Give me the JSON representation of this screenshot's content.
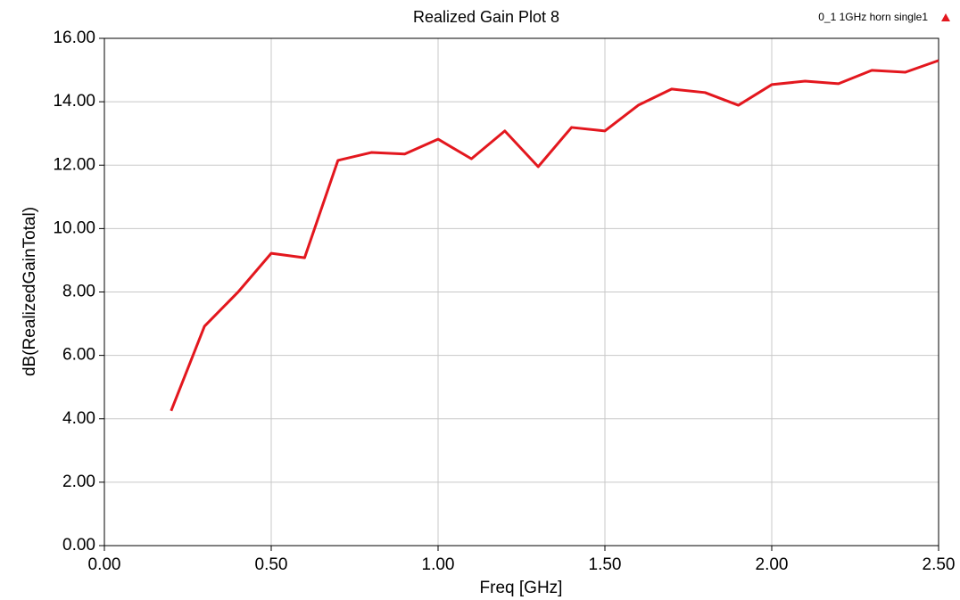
{
  "chart_data": {
    "type": "line",
    "title": "Realized Gain Plot 8",
    "xlabel": "Freq [GHz]",
    "ylabel": "dB(RealizedGainTotal)",
    "x": [
      0.2,
      0.3,
      0.4,
      0.5,
      0.6,
      0.7,
      0.8,
      0.9,
      1.0,
      1.1,
      1.2,
      1.3,
      1.4,
      1.5,
      1.6,
      1.7,
      1.8,
      1.9,
      2.0,
      2.1,
      2.2,
      2.3,
      2.4,
      2.5
    ],
    "series": [
      {
        "name": "0_1 1GHz horn single1",
        "color": "#e3171e",
        "values": [
          4.25,
          6.92,
          7.99,
          9.22,
          9.08,
          12.15,
          12.4,
          12.35,
          12.82,
          12.2,
          13.08,
          11.95,
          13.19,
          13.08,
          13.89,
          14.4,
          14.29,
          13.89,
          14.54,
          14.65,
          14.57,
          14.99,
          14.93,
          15.3
        ]
      }
    ],
    "xlim": [
      0,
      2.5
    ],
    "ylim": [
      0,
      16
    ],
    "xticks": [
      {
        "value": 0,
        "label": "0.00"
      },
      {
        "value": 0.5,
        "label": "0.50"
      },
      {
        "value": 1,
        "label": "1.00"
      },
      {
        "value": 1.5,
        "label": "1.50"
      },
      {
        "value": 2,
        "label": "2.00"
      },
      {
        "value": 2.5,
        "label": "2.50"
      }
    ],
    "yticks": [
      {
        "value": 0,
        "label": "0.00"
      },
      {
        "value": 2,
        "label": "2.00"
      },
      {
        "value": 4,
        "label": "4.00"
      },
      {
        "value": 6,
        "label": "6.00"
      },
      {
        "value": 8,
        "label": "8.00"
      },
      {
        "value": 10,
        "label": "10.00"
      },
      {
        "value": 12,
        "label": "12.00"
      },
      {
        "value": 14,
        "label": "14.00"
      },
      {
        "value": 16,
        "label": "16.00"
      }
    ],
    "grid": true,
    "legend": "top-right"
  }
}
